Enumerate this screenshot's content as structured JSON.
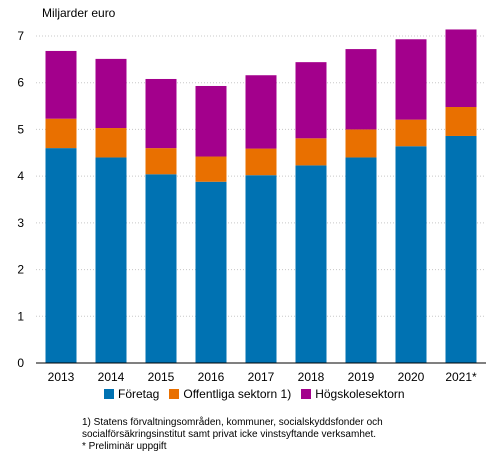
{
  "chart_data": {
    "type": "bar",
    "stacked": true,
    "ylabel": "Miljarder euro",
    "categories": [
      "2013",
      "2014",
      "2015",
      "2016",
      "2017",
      "2018",
      "2019",
      "2020",
      "2021*"
    ],
    "ylim": [
      0,
      7
    ],
    "yticks": [
      "0",
      "1",
      "2",
      "3",
      "4",
      "5",
      "6",
      "7"
    ],
    "grid": "horizontal",
    "legend_position": "bottom",
    "series": [
      {
        "name": "Företag",
        "color": "#0072b2",
        "values": [
          4.6,
          4.4,
          4.04,
          3.88,
          4.02,
          4.23,
          4.4,
          4.64,
          4.86
        ]
      },
      {
        "name": "Offentliga sektorn 1)",
        "color": "#e97000",
        "values": [
          0.63,
          0.63,
          0.56,
          0.54,
          0.57,
          0.58,
          0.6,
          0.57,
          0.62
        ]
      },
      {
        "name": "Högskolesektorn",
        "color": "#a3008c",
        "values": [
          1.45,
          1.48,
          1.48,
          1.51,
          1.57,
          1.63,
          1.72,
          1.72,
          1.66
        ]
      }
    ]
  },
  "footnotes": {
    "line1": "1)  Statens  förvaltningsområden, kommuner, socialskyddsfonder och",
    "line2": "socialförsäkringsinstitut samt privat icke vinstsyftande verksamhet.",
    "line3": "* Preliminär  uppgift"
  }
}
